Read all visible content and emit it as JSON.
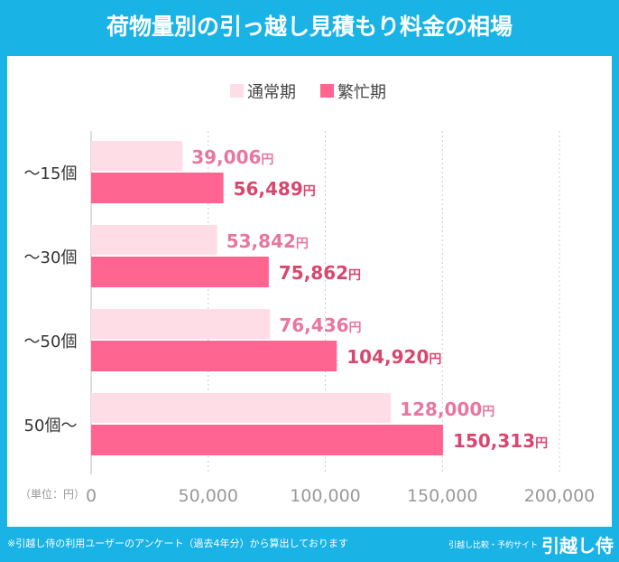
{
  "chart_data": {
    "type": "bar",
    "orientation": "horizontal",
    "title": "荷物量別の引っ越し見積もり料金の相場",
    "categories": [
      "〜15個",
      "〜30個",
      "〜50個",
      "50個〜"
    ],
    "series": [
      {
        "name": "通常期",
        "values": [
          39006,
          53842,
          76436,
          128000
        ],
        "color": "#ffdde6",
        "label_color": "#e8779f"
      },
      {
        "name": "繁忙期",
        "values": [
          56489,
          75862,
          104920,
          150313
        ],
        "color": "#ff6590",
        "label_color": "#d9466f"
      }
    ],
    "value_suffix": "円",
    "xlim": [
      0,
      200000
    ],
    "xticks": [
      "0",
      "50,000",
      "100,000",
      "150,000",
      "200,000"
    ],
    "unit_label": "（単位：円）",
    "legend_position": "top",
    "grid": true
  },
  "footer": {
    "note": "※引越し侍の利用ユーザーのアンケート（過去4年分）から算出しております",
    "brand_sub": "引越し比較・予約サイト",
    "brand": "引越し侍"
  }
}
